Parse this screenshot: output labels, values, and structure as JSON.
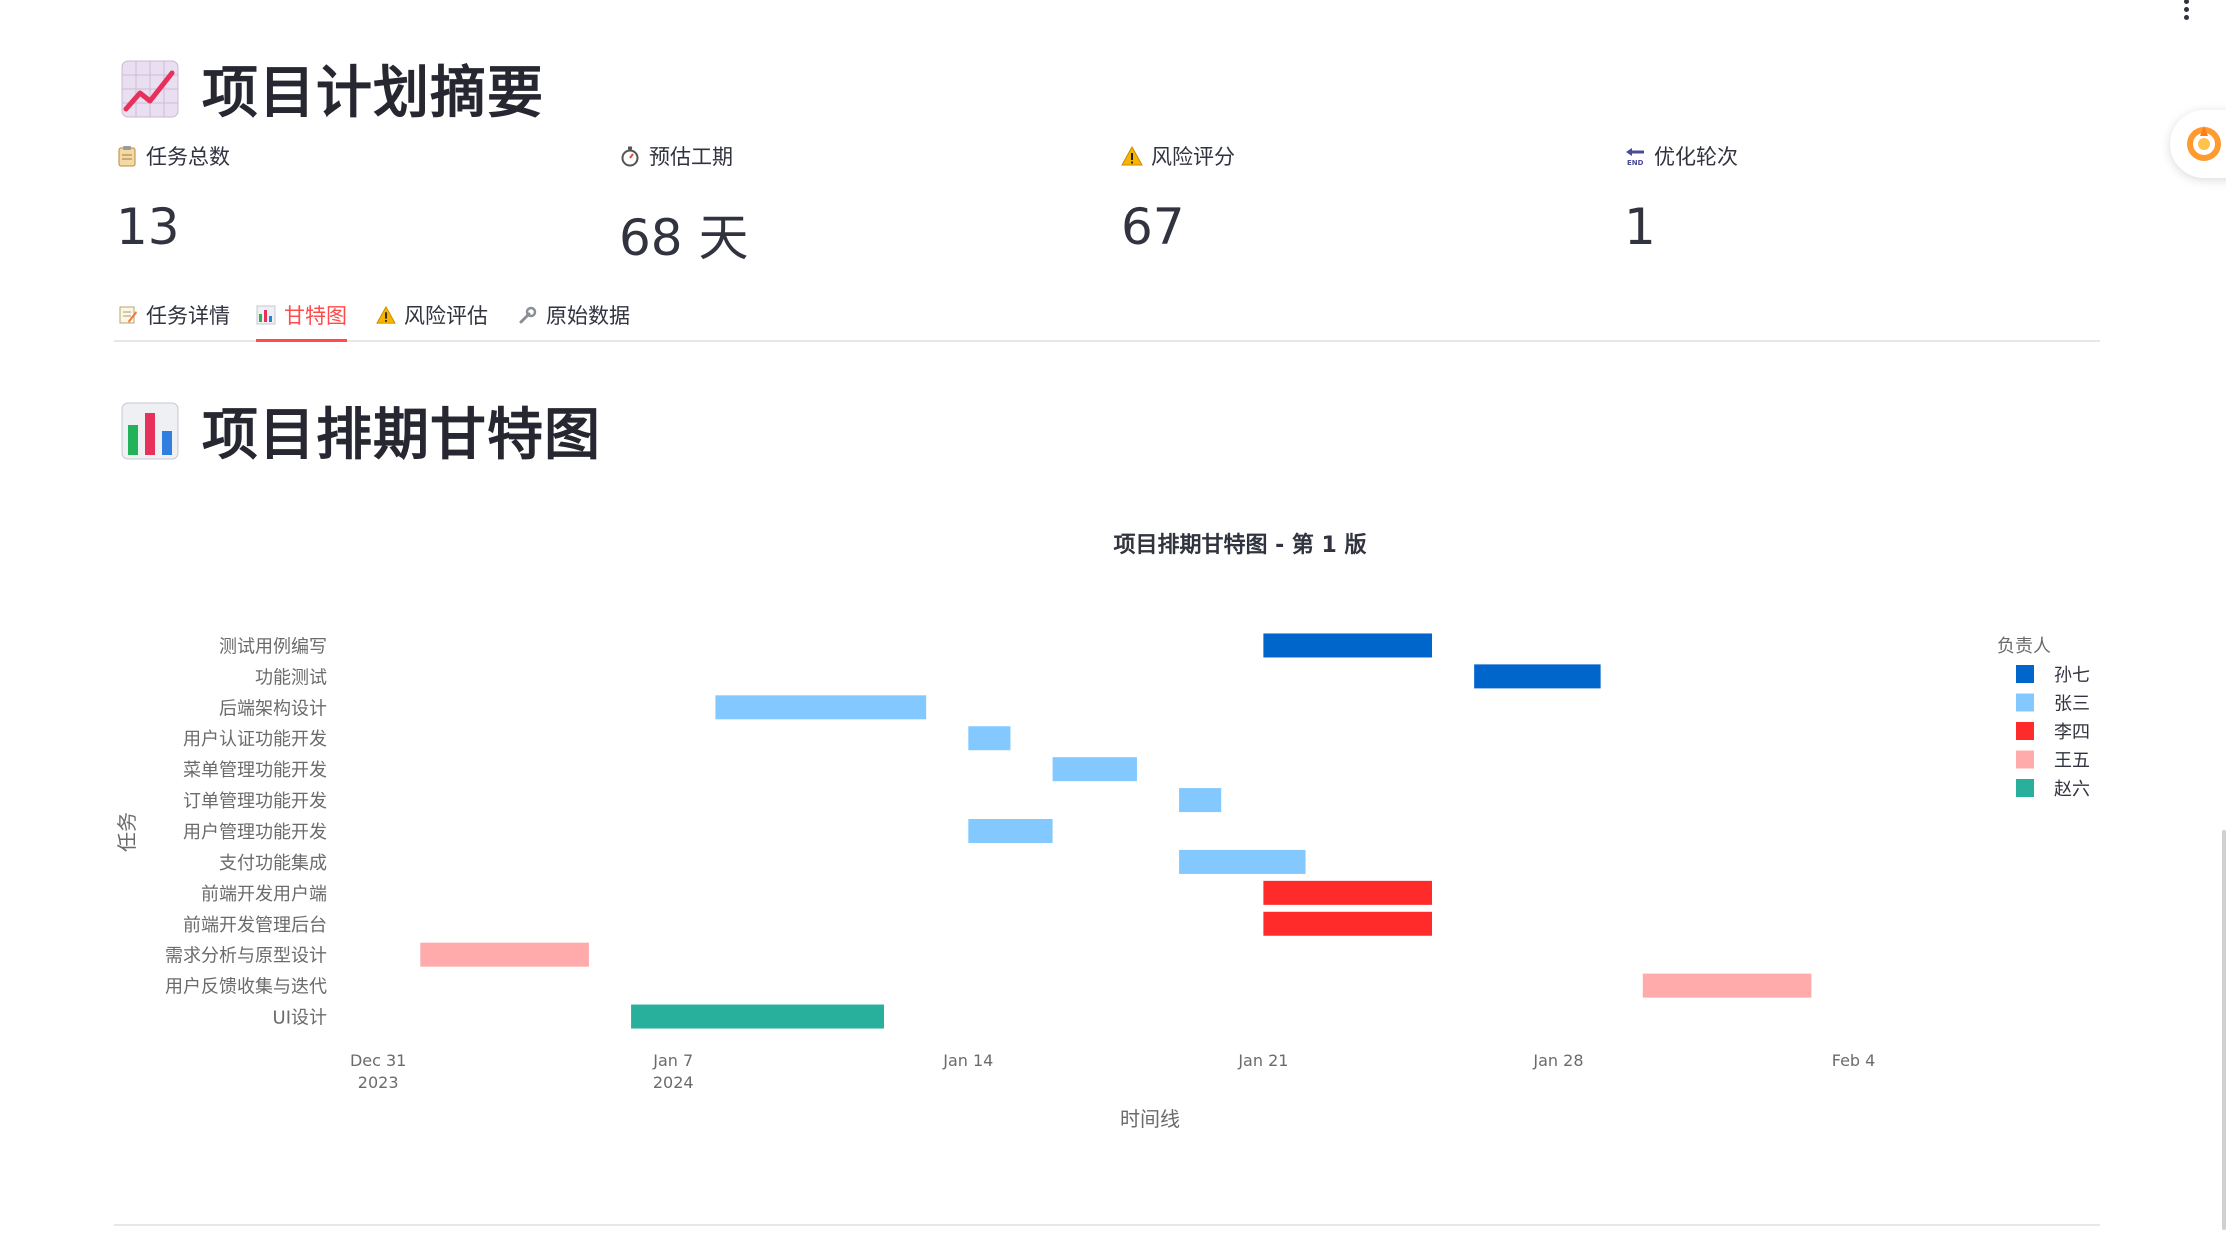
{
  "summary": {
    "title": "项目计划摘要",
    "title_icon": "chart-increasing-icon",
    "metrics": [
      {
        "icon": "clipboard-icon",
        "label": "任务总数",
        "value": "13"
      },
      {
        "icon": "stopwatch-icon",
        "label": "预估工期",
        "value": "68 天"
      },
      {
        "icon": "warning-icon",
        "label": "风险评分",
        "value": "67"
      },
      {
        "icon": "end-arrow-icon",
        "label": "优化轮次",
        "value": "1"
      }
    ]
  },
  "tabs": [
    {
      "icon": "memo-icon",
      "label": "任务详情"
    },
    {
      "icon": "bar-chart-icon",
      "label": "甘特图",
      "active": true
    },
    {
      "icon": "warning-icon",
      "label": "风险评估"
    },
    {
      "icon": "wrench-icon",
      "label": "原始数据"
    }
  ],
  "gantt": {
    "title": "项目排期甘特图",
    "title_icon": "bar-chart-icon"
  },
  "colors": {
    "孙七": "#0066cc",
    "张三": "#83c9ff",
    "李四": "#ff2b2b",
    "王五": "#ffabab",
    "赵六": "#29b09d",
    "accent": "#ff4b4b"
  },
  "chart_data": {
    "type": "bar",
    "orientation": "horizontal-gantt",
    "title": "项目排期甘特图 - 第 1 版",
    "xlabel": "时间线",
    "ylabel": "任务",
    "legend_title": "负责人",
    "legend_position": "right",
    "xlim": [
      "2023-12-30",
      "2024-02-07"
    ],
    "x_ticks": [
      {
        "date": "2023-12-31",
        "label": "Dec 31",
        "sub": "2023"
      },
      {
        "date": "2024-01-07",
        "label": "Jan 7",
        "sub": "2024"
      },
      {
        "date": "2024-01-14",
        "label": "Jan 14",
        "sub": ""
      },
      {
        "date": "2024-01-21",
        "label": "Jan 21",
        "sub": ""
      },
      {
        "date": "2024-01-28",
        "label": "Jan 28",
        "sub": ""
      },
      {
        "date": "2024-02-04",
        "label": "Feb 4",
        "sub": ""
      }
    ],
    "series": [
      {
        "name": "孙七"
      },
      {
        "name": "张三"
      },
      {
        "name": "李四"
      },
      {
        "name": "王五"
      },
      {
        "name": "赵六"
      }
    ],
    "tasks": [
      {
        "task": "测试用例编写",
        "owner": "孙七",
        "start": "2024-01-21",
        "end": "2024-01-25"
      },
      {
        "task": "功能测试",
        "owner": "孙七",
        "start": "2024-01-26",
        "end": "2024-01-29"
      },
      {
        "task": "后端架构设计",
        "owner": "张三",
        "start": "2024-01-08",
        "end": "2024-01-13"
      },
      {
        "task": "用户认证功能开发",
        "owner": "张三",
        "start": "2024-01-14",
        "end": "2024-01-15"
      },
      {
        "task": "菜单管理功能开发",
        "owner": "张三",
        "start": "2024-01-16",
        "end": "2024-01-18"
      },
      {
        "task": "订单管理功能开发",
        "owner": "张三",
        "start": "2024-01-19",
        "end": "2024-01-20"
      },
      {
        "task": "用户管理功能开发",
        "owner": "张三",
        "start": "2024-01-14",
        "end": "2024-01-16"
      },
      {
        "task": "支付功能集成",
        "owner": "张三",
        "start": "2024-01-19",
        "end": "2024-01-22"
      },
      {
        "task": "前端开发用户端",
        "owner": "李四",
        "start": "2024-01-21",
        "end": "2024-01-25"
      },
      {
        "task": "前端开发管理后台",
        "owner": "李四",
        "start": "2024-01-21",
        "end": "2024-01-25"
      },
      {
        "task": "需求分析与原型设计",
        "owner": "王五",
        "start": "2024-01-01",
        "end": "2024-01-05"
      },
      {
        "task": "用户反馈收集与迭代",
        "owner": "王五",
        "start": "2024-01-30",
        "end": "2024-02-03"
      },
      {
        "task": "UI设计",
        "owner": "赵六",
        "start": "2024-01-06",
        "end": "2024-01-12"
      }
    ]
  }
}
